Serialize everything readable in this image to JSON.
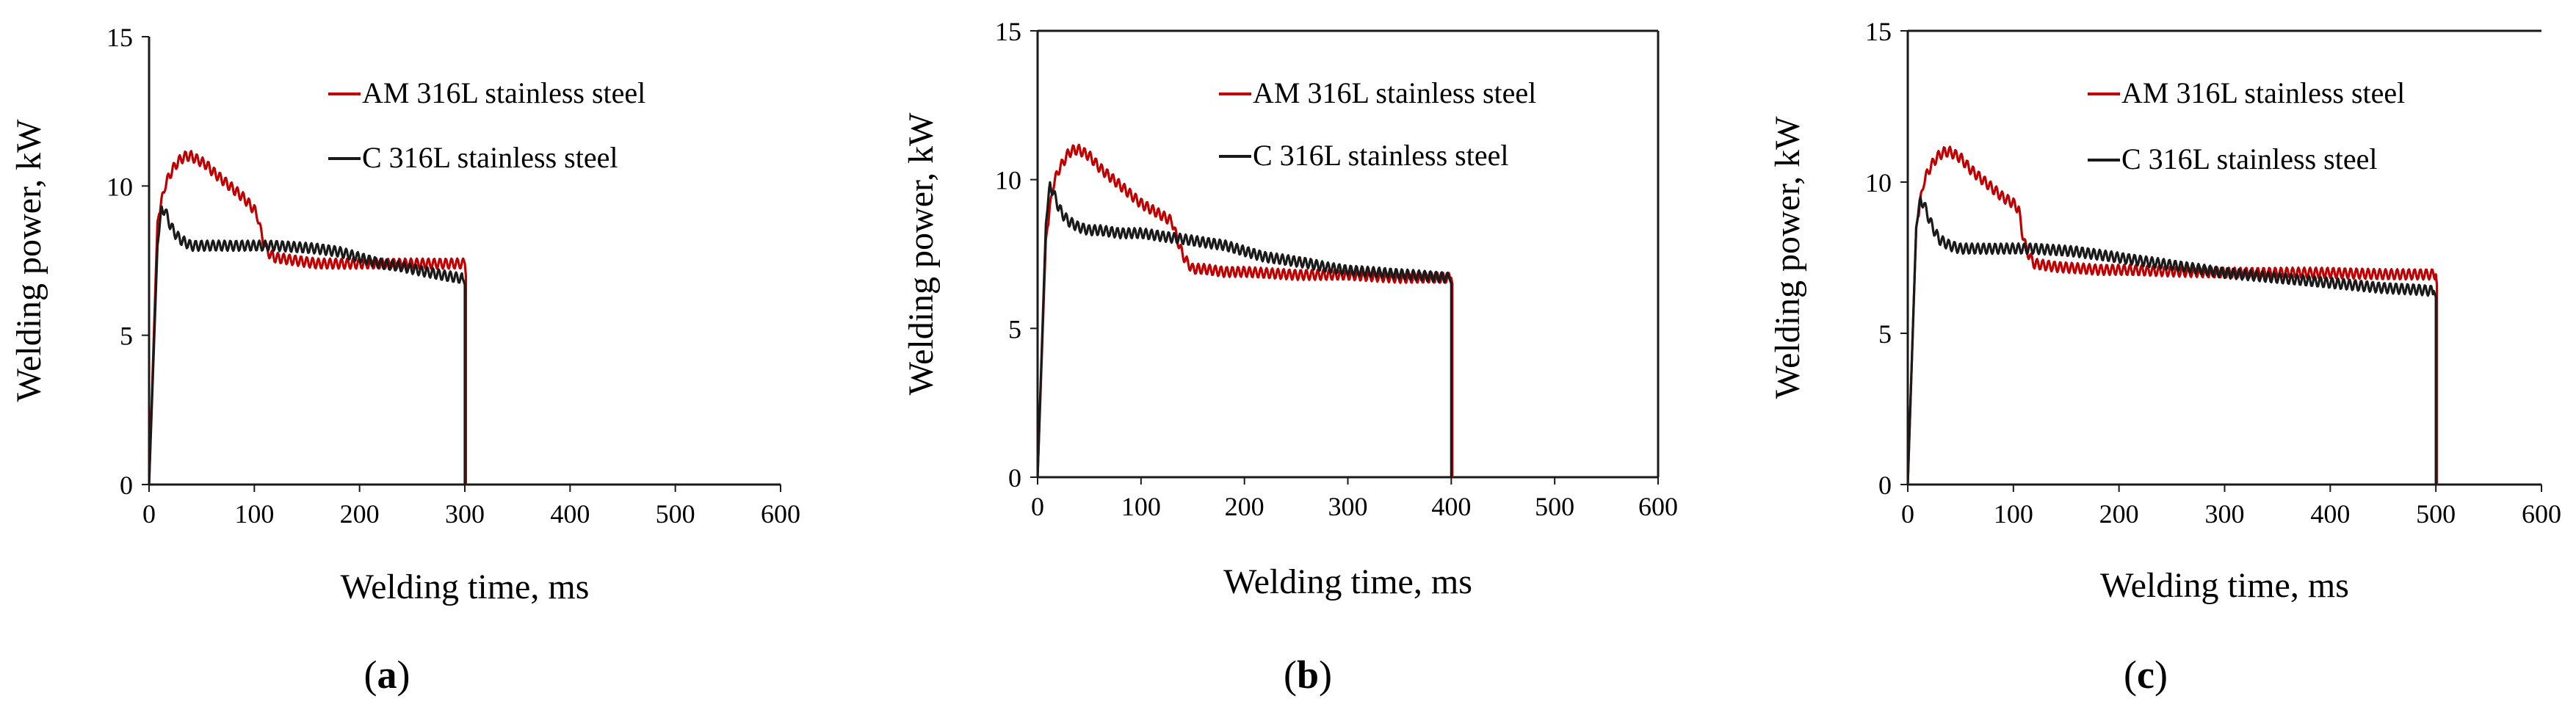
{
  "chart_data": [
    {
      "type": "line",
      "panel_label": "(a)",
      "xlabel": "Welding time, ms",
      "ylabel": "Welding power, kW",
      "xlim": [
        0,
        600
      ],
      "ylim": [
        0,
        15
      ],
      "xticks": [
        "0",
        "100",
        "200",
        "300",
        "400",
        "500",
        "600"
      ],
      "yticks": [
        "0",
        "5",
        "10",
        "15"
      ],
      "legend_position": "top-right",
      "series": [
        {
          "name": "AM 316L stainless steel",
          "color": "#c00000",
          "x": [
            0,
            8,
            15,
            20,
            25,
            30,
            35,
            40,
            45,
            50,
            55,
            60,
            70,
            80,
            90,
            100,
            103,
            106,
            110,
            115,
            120,
            140,
            160,
            180,
            200,
            220,
            240,
            260,
            280,
            300,
            301,
            301
          ],
          "y": [
            0,
            8.8,
            10.0,
            10.4,
            10.7,
            10.9,
            11.0,
            11.0,
            10.9,
            10.8,
            10.7,
            10.5,
            10.2,
            9.9,
            9.6,
            9.2,
            9.0,
            8.5,
            8.0,
            7.7,
            7.6,
            7.5,
            7.4,
            7.4,
            7.4,
            7.4,
            7.4,
            7.4,
            7.4,
            7.4,
            7.0,
            0
          ]
        },
        {
          "name": "C 316L stainless steel",
          "color": "#1a1a1a",
          "x": [
            0,
            8,
            12,
            15,
            20,
            25,
            30,
            35,
            40,
            50,
            60,
            70,
            80,
            90,
            100,
            120,
            140,
            160,
            180,
            200,
            220,
            240,
            260,
            280,
            298,
            300,
            300
          ],
          "y": [
            0,
            8.0,
            9.2,
            9.2,
            8.7,
            8.4,
            8.2,
            8.1,
            8.0,
            8.0,
            8.0,
            8.0,
            8.0,
            8.0,
            8.0,
            8.0,
            7.95,
            7.9,
            7.8,
            7.6,
            7.4,
            7.3,
            7.15,
            7.0,
            6.9,
            6.7,
            0
          ]
        }
      ]
    },
    {
      "type": "line",
      "panel_label": "(b)",
      "xlabel": "Welding time, ms",
      "ylabel": "Welding power, kW",
      "xlim": [
        0,
        600
      ],
      "ylim": [
        0,
        15
      ],
      "xticks": [
        "0",
        "100",
        "200",
        "300",
        "400",
        "500",
        "600"
      ],
      "yticks": [
        "0",
        "5",
        "10",
        "15"
      ],
      "legend_position": "top-right",
      "series": [
        {
          "name": "AM 316L stainless steel",
          "color": "#c00000",
          "x": [
            0,
            8,
            15,
            20,
            25,
            30,
            35,
            40,
            45,
            50,
            55,
            60,
            70,
            80,
            90,
            100,
            110,
            120,
            130,
            135,
            140,
            145,
            150,
            160,
            180,
            200,
            250,
            300,
            350,
            400,
            401,
            401
          ],
          "y": [
            0,
            8.0,
            9.8,
            10.3,
            10.6,
            10.9,
            11.0,
            11.0,
            10.9,
            10.8,
            10.6,
            10.4,
            10.1,
            9.8,
            9.5,
            9.2,
            9.0,
            8.8,
            8.6,
            8.0,
            7.5,
            7.2,
            7.0,
            7.0,
            6.9,
            6.9,
            6.8,
            6.8,
            6.7,
            6.7,
            6.5,
            0
          ]
        },
        {
          "name": "C 316L stainless steel",
          "color": "#1a1a1a",
          "x": [
            0,
            8,
            12,
            15,
            20,
            25,
            30,
            40,
            50,
            60,
            80,
            100,
            120,
            140,
            160,
            180,
            200,
            220,
            240,
            260,
            280,
            300,
            320,
            340,
            360,
            380,
            398,
            400,
            400
          ],
          "y": [
            0,
            8.5,
            9.8,
            9.6,
            9.1,
            8.8,
            8.6,
            8.4,
            8.3,
            8.3,
            8.2,
            8.2,
            8.1,
            8.0,
            7.9,
            7.8,
            7.6,
            7.4,
            7.3,
            7.2,
            7.05,
            6.95,
            6.9,
            6.85,
            6.8,
            6.75,
            6.7,
            6.5,
            0
          ]
        }
      ]
    },
    {
      "type": "line",
      "panel_label": "(c)",
      "xlabel": "Welding time, ms",
      "ylabel": "Welding power, kW",
      "xlim": [
        0,
        600
      ],
      "ylim": [
        0,
        15
      ],
      "xticks": [
        "0",
        "100",
        "200",
        "300",
        "400",
        "500",
        "600"
      ],
      "yticks": [
        "0",
        "5",
        "10",
        "15"
      ],
      "legend_position": "top-right",
      "series": [
        {
          "name": "AM 316L stainless steel",
          "color": "#c00000",
          "x": [
            0,
            8,
            15,
            20,
            25,
            30,
            35,
            40,
            45,
            50,
            55,
            60,
            70,
            80,
            90,
            100,
            105,
            108,
            112,
            116,
            120,
            140,
            160,
            180,
            200,
            250,
            300,
            350,
            400,
            450,
            500,
            501,
            501
          ],
          "y": [
            0,
            8.5,
            10.0,
            10.4,
            10.7,
            10.9,
            11.0,
            11.0,
            10.9,
            10.8,
            10.6,
            10.4,
            10.1,
            9.8,
            9.5,
            9.3,
            9.1,
            8.4,
            7.8,
            7.5,
            7.3,
            7.2,
            7.15,
            7.1,
            7.1,
            7.05,
            7.0,
            7.0,
            7.0,
            6.95,
            6.95,
            6.6,
            0
          ]
        },
        {
          "name": "C 316L stainless steel",
          "color": "#1a1a1a",
          "x": [
            0,
            8,
            12,
            15,
            20,
            25,
            30,
            40,
            50,
            60,
            80,
            100,
            120,
            140,
            160,
            180,
            200,
            220,
            240,
            260,
            280,
            300,
            330,
            360,
            390,
            420,
            450,
            480,
            498,
            500,
            500
          ],
          "y": [
            0,
            8.5,
            9.4,
            9.3,
            8.8,
            8.4,
            8.1,
            7.9,
            7.8,
            7.8,
            7.8,
            7.8,
            7.8,
            7.75,
            7.7,
            7.6,
            7.5,
            7.4,
            7.3,
            7.2,
            7.1,
            7.0,
            6.9,
            6.8,
            6.7,
            6.6,
            6.5,
            6.45,
            6.4,
            6.2,
            0
          ]
        }
      ]
    }
  ]
}
